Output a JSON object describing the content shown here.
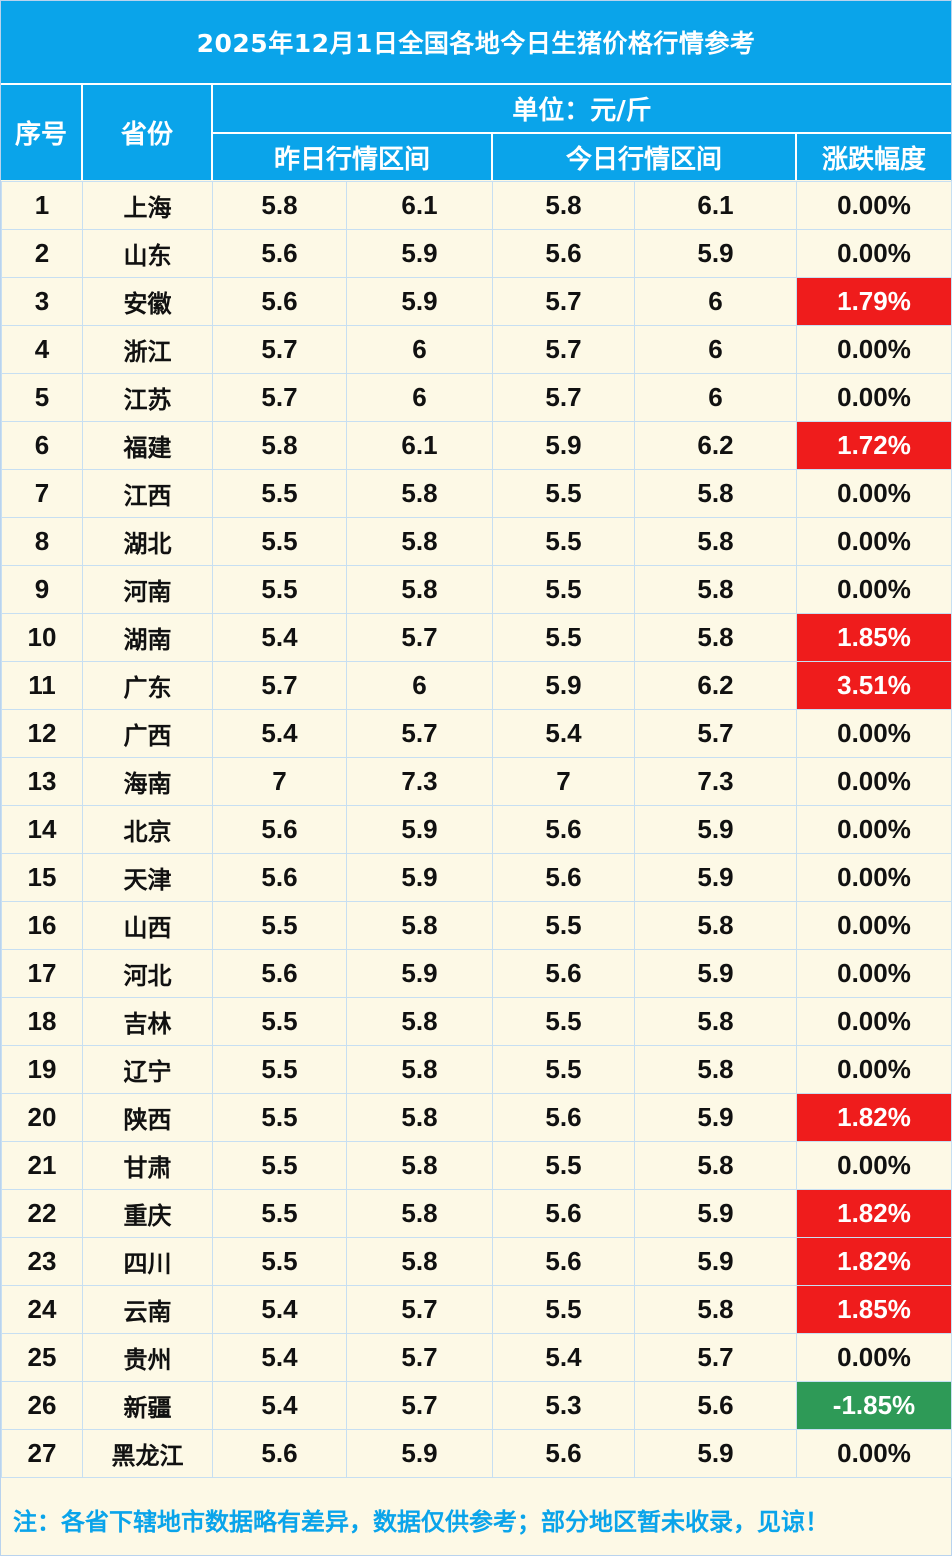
{
  "title": "2025年12月1日全国各地今日生猪价格行情参考",
  "header": {
    "index_label": "序号",
    "province_label": "省份",
    "unit_label": "单位：元/斤",
    "yesterday_label": "昨日行情区间",
    "today_label": "今日行情区间",
    "change_label": "涨跌幅度"
  },
  "colors": {
    "header_bg": "#0aa4ea",
    "rise": "#ef1c1c",
    "fall": "#2e9a57",
    "body_bg": "#fdf9e6"
  },
  "rows": [
    {
      "idx": "1",
      "province": "上海",
      "y_low": "5.8",
      "y_high": "6.1",
      "t_low": "5.8",
      "t_high": "6.1",
      "change": "0.00%",
      "trend": "flat"
    },
    {
      "idx": "2",
      "province": "山东",
      "y_low": "5.6",
      "y_high": "5.9",
      "t_low": "5.6",
      "t_high": "5.9",
      "change": "0.00%",
      "trend": "flat"
    },
    {
      "idx": "3",
      "province": "安徽",
      "y_low": "5.6",
      "y_high": "5.9",
      "t_low": "5.7",
      "t_high": "6",
      "change": "1.79%",
      "trend": "up"
    },
    {
      "idx": "4",
      "province": "浙江",
      "y_low": "5.7",
      "y_high": "6",
      "t_low": "5.7",
      "t_high": "6",
      "change": "0.00%",
      "trend": "flat"
    },
    {
      "idx": "5",
      "province": "江苏",
      "y_low": "5.7",
      "y_high": "6",
      "t_low": "5.7",
      "t_high": "6",
      "change": "0.00%",
      "trend": "flat"
    },
    {
      "idx": "6",
      "province": "福建",
      "y_low": "5.8",
      "y_high": "6.1",
      "t_low": "5.9",
      "t_high": "6.2",
      "change": "1.72%",
      "trend": "up"
    },
    {
      "idx": "7",
      "province": "江西",
      "y_low": "5.5",
      "y_high": "5.8",
      "t_low": "5.5",
      "t_high": "5.8",
      "change": "0.00%",
      "trend": "flat"
    },
    {
      "idx": "8",
      "province": "湖北",
      "y_low": "5.5",
      "y_high": "5.8",
      "t_low": "5.5",
      "t_high": "5.8",
      "change": "0.00%",
      "trend": "flat"
    },
    {
      "idx": "9",
      "province": "河南",
      "y_low": "5.5",
      "y_high": "5.8",
      "t_low": "5.5",
      "t_high": "5.8",
      "change": "0.00%",
      "trend": "flat"
    },
    {
      "idx": "10",
      "province": "湖南",
      "y_low": "5.4",
      "y_high": "5.7",
      "t_low": "5.5",
      "t_high": "5.8",
      "change": "1.85%",
      "trend": "up"
    },
    {
      "idx": "11",
      "province": "广东",
      "y_low": "5.7",
      "y_high": "6",
      "t_low": "5.9",
      "t_high": "6.2",
      "change": "3.51%",
      "trend": "up"
    },
    {
      "idx": "12",
      "province": "广西",
      "y_low": "5.4",
      "y_high": "5.7",
      "t_low": "5.4",
      "t_high": "5.7",
      "change": "0.00%",
      "trend": "flat"
    },
    {
      "idx": "13",
      "province": "海南",
      "y_low": "7",
      "y_high": "7.3",
      "t_low": "7",
      "t_high": "7.3",
      "change": "0.00%",
      "trend": "flat"
    },
    {
      "idx": "14",
      "province": "北京",
      "y_low": "5.6",
      "y_high": "5.9",
      "t_low": "5.6",
      "t_high": "5.9",
      "change": "0.00%",
      "trend": "flat"
    },
    {
      "idx": "15",
      "province": "天津",
      "y_low": "5.6",
      "y_high": "5.9",
      "t_low": "5.6",
      "t_high": "5.9",
      "change": "0.00%",
      "trend": "flat"
    },
    {
      "idx": "16",
      "province": "山西",
      "y_low": "5.5",
      "y_high": "5.8",
      "t_low": "5.5",
      "t_high": "5.8",
      "change": "0.00%",
      "trend": "flat"
    },
    {
      "idx": "17",
      "province": "河北",
      "y_low": "5.6",
      "y_high": "5.9",
      "t_low": "5.6",
      "t_high": "5.9",
      "change": "0.00%",
      "trend": "flat"
    },
    {
      "idx": "18",
      "province": "吉林",
      "y_low": "5.5",
      "y_high": "5.8",
      "t_low": "5.5",
      "t_high": "5.8",
      "change": "0.00%",
      "trend": "flat"
    },
    {
      "idx": "19",
      "province": "辽宁",
      "y_low": "5.5",
      "y_high": "5.8",
      "t_low": "5.5",
      "t_high": "5.8",
      "change": "0.00%",
      "trend": "flat"
    },
    {
      "idx": "20",
      "province": "陕西",
      "y_low": "5.5",
      "y_high": "5.8",
      "t_low": "5.6",
      "t_high": "5.9",
      "change": "1.82%",
      "trend": "up"
    },
    {
      "idx": "21",
      "province": "甘肃",
      "y_low": "5.5",
      "y_high": "5.8",
      "t_low": "5.5",
      "t_high": "5.8",
      "change": "0.00%",
      "trend": "flat"
    },
    {
      "idx": "22",
      "province": "重庆",
      "y_low": "5.5",
      "y_high": "5.8",
      "t_low": "5.6",
      "t_high": "5.9",
      "change": "1.82%",
      "trend": "up"
    },
    {
      "idx": "23",
      "province": "四川",
      "y_low": "5.5",
      "y_high": "5.8",
      "t_low": "5.6",
      "t_high": "5.9",
      "change": "1.82%",
      "trend": "up"
    },
    {
      "idx": "24",
      "province": "云南",
      "y_low": "5.4",
      "y_high": "5.7",
      "t_low": "5.5",
      "t_high": "5.8",
      "change": "1.85%",
      "trend": "up"
    },
    {
      "idx": "25",
      "province": "贵州",
      "y_low": "5.4",
      "y_high": "5.7",
      "t_low": "5.4",
      "t_high": "5.7",
      "change": "0.00%",
      "trend": "flat"
    },
    {
      "idx": "26",
      "province": "新疆",
      "y_low": "5.4",
      "y_high": "5.7",
      "t_low": "5.3",
      "t_high": "5.6",
      "change": "-1.85%",
      "trend": "down"
    },
    {
      "idx": "27",
      "province": "黑龙江",
      "y_low": "5.6",
      "y_high": "5.9",
      "t_low": "5.6",
      "t_high": "5.9",
      "change": "0.00%",
      "trend": "flat"
    }
  ],
  "footer": "注：各省下辖地市数据略有差异，数据仅供参考；部分地区暂未收录，见谅！"
}
